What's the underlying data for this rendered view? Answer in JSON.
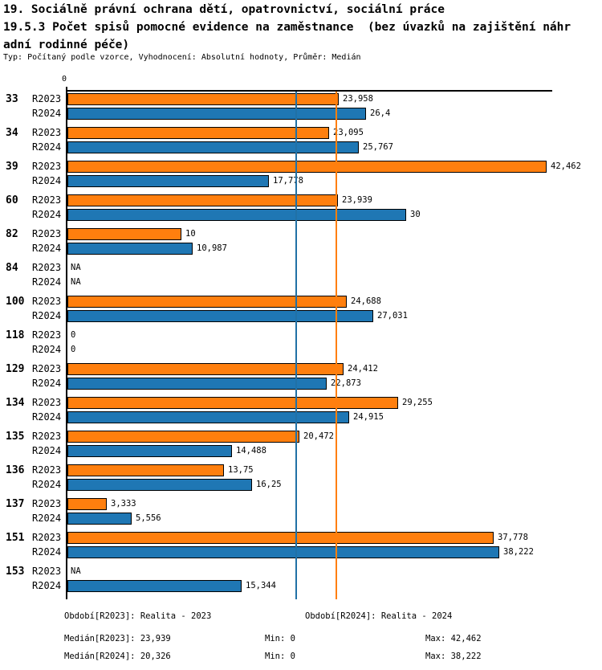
{
  "header": {
    "title_line1": "19. Sociálně právní ochrana dětí, opatrovnictví, sociální práce",
    "title_line2": "19.5.3 Počet spisů pomocné evidence na zaměstnance  (bez úvazků na zajištění náhr",
    "title_line3": "adní rodinné péče)",
    "subtitle": "Typ: Počítaný podle vzorce, Vyhodnocení: Absolutní hodnoty, Průměr: Medián"
  },
  "chart_data": {
    "type": "bar",
    "orientation": "horizontal",
    "axis_origin_label": "0",
    "xlim": [
      0,
      42.462
    ],
    "grid": false,
    "series_names": [
      "R2023",
      "R2024"
    ],
    "colors": {
      "r2023_bar": "#ff7f0e",
      "r2024_bar": "#1f77b4",
      "bar_border": "#000000"
    },
    "median_lines": [
      {
        "series": "R2023",
        "value": 23.939,
        "color": "#ff7f0e"
      },
      {
        "series": "R2024",
        "value": 20.326,
        "color": "#2171a6"
      }
    ],
    "groups": [
      {
        "category": "33",
        "values": [
          {
            "series": "R2023",
            "display": "23,958",
            "value": 23.958
          },
          {
            "series": "R2024",
            "display": "26,4",
            "value": 26.4
          }
        ]
      },
      {
        "category": "34",
        "values": [
          {
            "series": "R2023",
            "display": "23,095",
            "value": 23.095
          },
          {
            "series": "R2024",
            "display": "25,767",
            "value": 25.767
          }
        ]
      },
      {
        "category": "39",
        "values": [
          {
            "series": "R2023",
            "display": "42,462",
            "value": 42.462
          },
          {
            "series": "R2024",
            "display": "17,778",
            "value": 17.778
          }
        ]
      },
      {
        "category": "60",
        "values": [
          {
            "series": "R2023",
            "display": "23,939",
            "value": 23.939
          },
          {
            "series": "R2024",
            "display": "30",
            "value": 30
          }
        ]
      },
      {
        "category": "82",
        "values": [
          {
            "series": "R2023",
            "display": "10",
            "value": 10
          },
          {
            "series": "R2024",
            "display": "10,987",
            "value": 10.987
          }
        ]
      },
      {
        "category": "84",
        "values": [
          {
            "series": "R2023",
            "display": "NA",
            "value": null
          },
          {
            "series": "R2024",
            "display": "NA",
            "value": null
          }
        ]
      },
      {
        "category": "100",
        "values": [
          {
            "series": "R2023",
            "display": "24,688",
            "value": 24.688
          },
          {
            "series": "R2024",
            "display": "27,031",
            "value": 27.031
          }
        ]
      },
      {
        "category": "118",
        "values": [
          {
            "series": "R2023",
            "display": "0",
            "value": 0
          },
          {
            "series": "R2024",
            "display": "0",
            "value": 0
          }
        ]
      },
      {
        "category": "129",
        "values": [
          {
            "series": "R2023",
            "display": "24,412",
            "value": 24.412
          },
          {
            "series": "R2024",
            "display": "22,873",
            "value": 22.873
          }
        ]
      },
      {
        "category": "134",
        "values": [
          {
            "series": "R2023",
            "display": "29,255",
            "value": 29.255
          },
          {
            "series": "R2024",
            "display": "24,915",
            "value": 24.915
          }
        ]
      },
      {
        "category": "135",
        "values": [
          {
            "series": "R2023",
            "display": "20,472",
            "value": 20.472
          },
          {
            "series": "R2024",
            "display": "14,488",
            "value": 14.488
          }
        ]
      },
      {
        "category": "136",
        "values": [
          {
            "series": "R2023",
            "display": "13,75",
            "value": 13.75
          },
          {
            "series": "R2024",
            "display": "16,25",
            "value": 16.25
          }
        ]
      },
      {
        "category": "137",
        "values": [
          {
            "series": "R2023",
            "display": "3,333",
            "value": 3.333
          },
          {
            "series": "R2024",
            "display": "5,556",
            "value": 5.556
          }
        ]
      },
      {
        "category": "151",
        "values": [
          {
            "series": "R2023",
            "display": "37,778",
            "value": 37.778
          },
          {
            "series": "R2024",
            "display": "38,222",
            "value": 38.222
          }
        ]
      },
      {
        "category": "153",
        "values": [
          {
            "series": "R2023",
            "display": "NA",
            "value": null
          },
          {
            "series": "R2024",
            "display": "15,344",
            "value": 15.344
          }
        ]
      }
    ]
  },
  "footer": {
    "period_r2023": "Období[R2023]: Realita - 2023",
    "period_r2024": "Období[R2024]: Realita - 2024",
    "stats_rows": [
      {
        "median": "Medián[R2023]: 23,939",
        "min": "Min: 0",
        "max": "Max: 42,462"
      },
      {
        "median": "Medián[R2024]: 20,326",
        "min": "Min: 0",
        "max": "Max: 38,222"
      }
    ]
  }
}
